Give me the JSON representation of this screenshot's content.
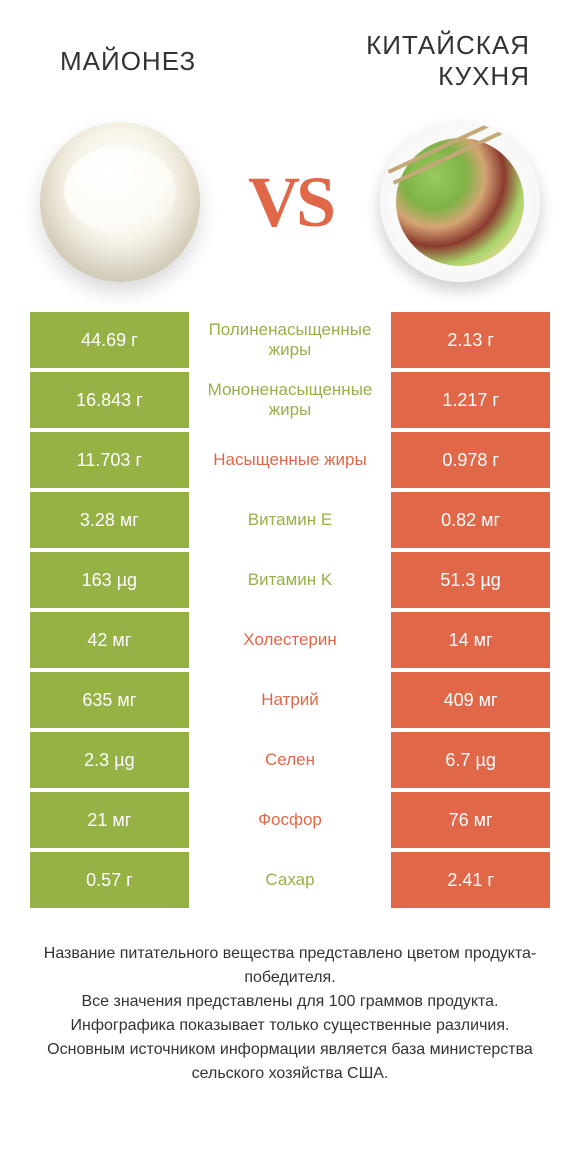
{
  "titles": {
    "left": "МАЙОНЕЗ",
    "right": "КИТАЙСКАЯ КУХНЯ",
    "vs": "VS"
  },
  "colors": {
    "green": "#96b144",
    "orange": "#e06848",
    "text_green": "#96b144",
    "text_orange": "#e06848",
    "background": "#ffffff"
  },
  "rows": [
    {
      "left": "44.69 г",
      "mid": "Полиненасыщенные жиры",
      "right": "2.13 г",
      "winner": "left"
    },
    {
      "left": "16.843 г",
      "mid": "Мононенасыщенные жиры",
      "right": "1.217 г",
      "winner": "left"
    },
    {
      "left": "11.703 г",
      "mid": "Насыщенные жиры",
      "right": "0.978 г",
      "winner": "right"
    },
    {
      "left": "3.28 мг",
      "mid": "Витамин E",
      "right": "0.82 мг",
      "winner": "left"
    },
    {
      "left": "163 µg",
      "mid": "Витамин K",
      "right": "51.3 µg",
      "winner": "left"
    },
    {
      "left": "42 мг",
      "mid": "Холестерин",
      "right": "14 мг",
      "winner": "right"
    },
    {
      "left": "635 мг",
      "mid": "Натрий",
      "right": "409 мг",
      "winner": "right"
    },
    {
      "left": "2.3 µg",
      "mid": "Селен",
      "right": "6.7 µg",
      "winner": "right"
    },
    {
      "left": "21 мг",
      "mid": "Фосфор",
      "right": "76 мг",
      "winner": "right"
    },
    {
      "left": "0.57 г",
      "mid": "Сахар",
      "right": "2.41 г",
      "winner": "left"
    }
  ],
  "footer_lines": [
    "Название питательного вещества представлено цветом продукта-победителя.",
    "Все значения представлены для 100 граммов продукта.",
    "Инфографика показывает только существенные различия.",
    "Основным источником информации является база министерства сельского хозяйства США."
  ]
}
